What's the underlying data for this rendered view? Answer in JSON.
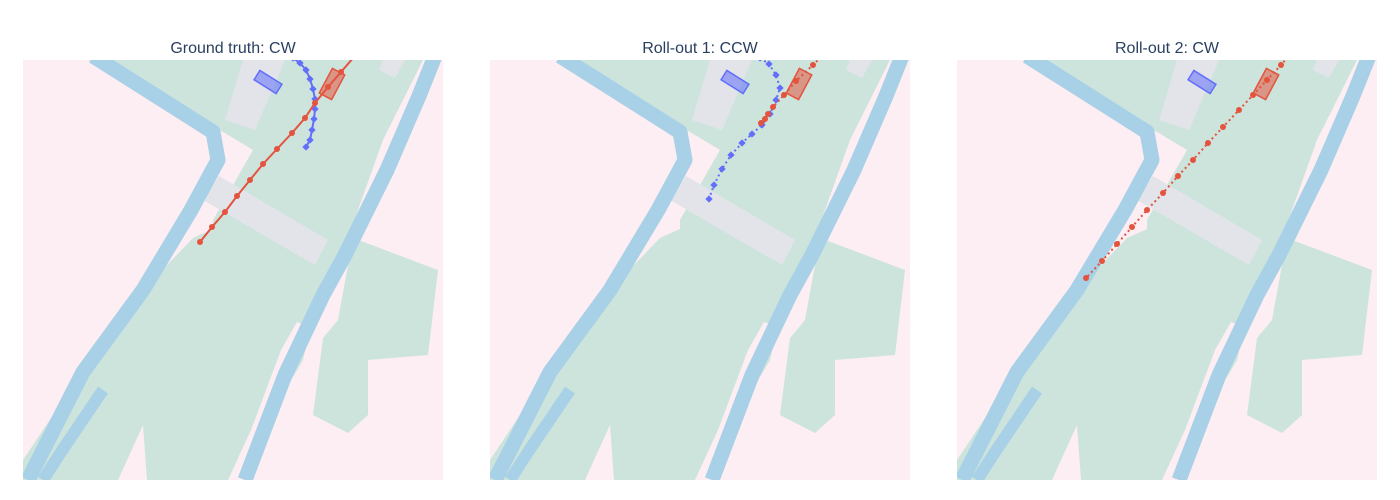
{
  "colors": {
    "sidewalk": "#fdeef3",
    "road": "#cde4dd",
    "curb": "#a8d0e6",
    "crosswalk": "#e2e4ea",
    "agent_red": "#e3533d",
    "agent_blue": "#636efa"
  },
  "chart_data": [
    {
      "type": "scatter",
      "title": "Ground truth: CW",
      "series": [
        {
          "color": "#636efa",
          "line": "solid",
          "x": [
            270,
            277,
            283,
            287,
            290,
            292,
            292,
            291,
            289,
            287,
            283
          ],
          "y": [
            422,
            417,
            410,
            401,
            391,
            381,
            371,
            361,
            350,
            340,
            333
          ]
        },
        {
          "color": "#e3533d",
          "line": "solid",
          "x": [
            331,
            318,
            305,
            292,
            282,
            269,
            254,
            240,
            227,
            214,
            202,
            189,
            177
          ],
          "y": [
            423,
            408,
            393,
            377,
            362,
            347,
            331,
            316,
            300,
            284,
            268,
            253,
            238
          ]
        }
      ]
    },
    {
      "type": "scatter",
      "title": "Roll-out 1: CCW",
      "series": [
        {
          "color": "#636efa",
          "line": "dotted",
          "x": [
            270,
            279,
            286,
            290,
            286,
            280,
            272,
            262,
            252,
            241,
            232,
            224,
            219
          ],
          "y": [
            422,
            416,
            405,
            392,
            380,
            366,
            355,
            346,
            337,
            325,
            311,
            295,
            281
          ]
        },
        {
          "color": "#e3533d",
          "line": "dotted",
          "x": [
            331,
            323,
            306,
            294,
            283,
            278,
            275,
            271
          ],
          "y": [
            423,
            415,
            399,
            385,
            373,
            366,
            361,
            357
          ]
        }
      ]
    },
    {
      "type": "scatter",
      "title": "Roll-out 2: CW",
      "series": [
        {
          "color": "#e3533d",
          "line": "dotted",
          "x": [
            331,
            324,
            310,
            296,
            282,
            266,
            251,
            236,
            221,
            206,
            190,
            175,
            160,
            145,
            129
          ],
          "y": [
            423,
            415,
            400,
            385,
            370,
            353,
            337,
            320,
            304,
            287,
            270,
            253,
            236,
            219,
            202
          ]
        }
      ]
    }
  ]
}
